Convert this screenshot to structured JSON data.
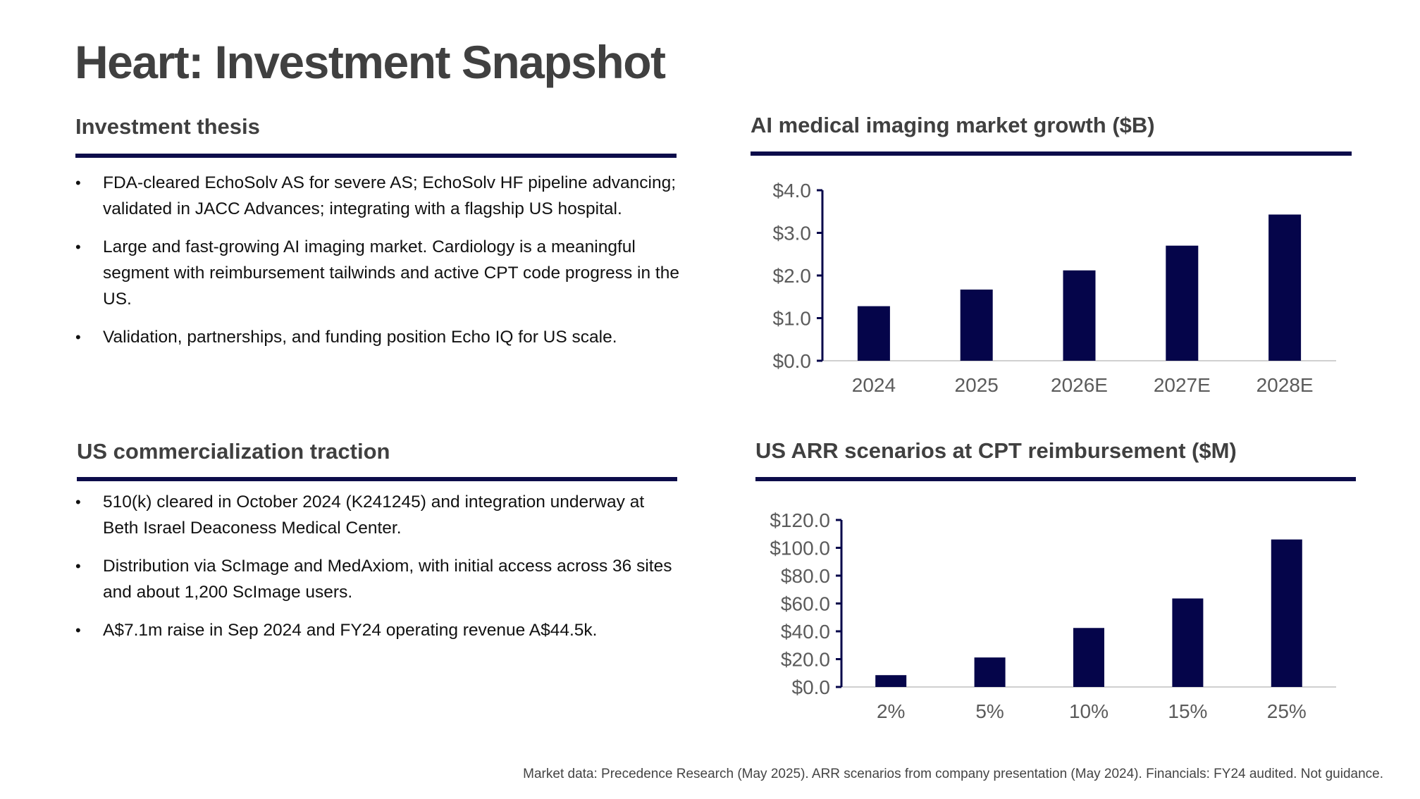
{
  "title": "Heart: Investment Snapshot",
  "thesis": {
    "heading": "Investment thesis",
    "bullets": [
      "FDA-cleared EchoSolv AS for severe AS; EchoSolv HF pipeline advancing; validated in JACC Advances; integrating with a flagship US hospital.",
      "Large and fast-growing AI imaging market. Cardiology is a meaningful segment with reimbursement tailwinds and active CPT code progress in the US.",
      "Validation, partnerships, and funding position Echo IQ for US scale."
    ]
  },
  "traction": {
    "heading": "US commercialization traction",
    "bullets": [
      "510(k) cleared in October 2024 (K241245) and integration underway at Beth Israel Deaconess Medical Center.",
      "Distribution via ScImage and MedAxiom, with initial access across 36 sites and about 1,200 ScImage users.",
      "A$7.1m raise in Sep 2024 and FY24 operating revenue A$44.5k."
    ]
  },
  "footnote": "Market data: Precedence Research (May 2025). ARR scenarios from company presentation (May 2024). Financials: FY24 audited. Not guidance.",
  "chart_data": [
    {
      "type": "bar",
      "title": "AI medical imaging market growth ($B)",
      "categories": [
        "2024",
        "2025",
        "2026E",
        "2027E",
        "2028E"
      ],
      "values": [
        1.28,
        1.67,
        2.12,
        2.7,
        3.43
      ],
      "ylim": [
        0,
        4
      ],
      "yticks": [
        "$0.0",
        "$1.0",
        "$2.0",
        "$3.0",
        "$4.0"
      ],
      "ytick_values": [
        0,
        1,
        2,
        3,
        4
      ],
      "grid": false,
      "bar_color": "#05054a"
    },
    {
      "type": "bar",
      "title": "US ARR scenarios at CPT reimbursement ($M)",
      "categories": [
        "2%",
        "5%",
        "10%",
        "15%",
        "25%"
      ],
      "values": [
        8.5,
        21.2,
        42.4,
        63.6,
        106
      ],
      "ylim": [
        0,
        120
      ],
      "yticks": [
        "$0.0",
        "$20.0",
        "$40.0",
        "$60.0",
        "$80.0",
        "$100.0",
        "$120.0"
      ],
      "ytick_values": [
        0,
        20,
        40,
        60,
        80,
        100,
        120
      ],
      "grid": false,
      "bar_color": "#05054a"
    }
  ]
}
